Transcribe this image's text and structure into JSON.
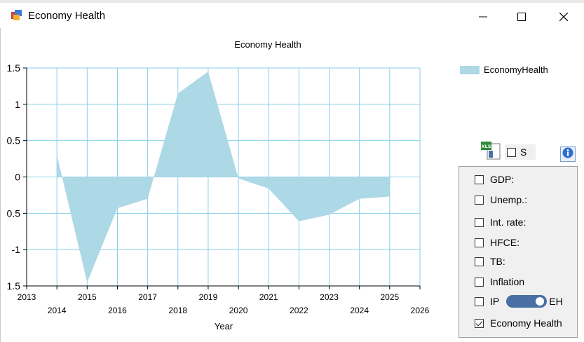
{
  "window": {
    "title": "Economy Health",
    "icon": "app-window-icon",
    "controls": [
      "minimize-icon",
      "maximize-icon",
      "close-icon"
    ]
  },
  "chart_data": {
    "type": "area",
    "title": "Economy Health",
    "xlabel": "Year",
    "ylabel": "",
    "xlim": [
      2013,
      2026
    ],
    "ylim": [
      -1.5,
      1.5
    ],
    "x_ticks_top_row": [
      "2013",
      "2015",
      "2017",
      "2019",
      "2021",
      "2023",
      "2025"
    ],
    "x_ticks_bottom_row": [
      "2014",
      "2016",
      "2018",
      "2020",
      "2022",
      "2024",
      "2026"
    ],
    "y_ticks": [
      "1.5",
      "1",
      "0.5",
      "0",
      "0.5",
      "-1",
      "1.5"
    ],
    "grid": true,
    "legend": "top-right",
    "series": [
      {
        "name": "EconomyHealth",
        "color": "#add8e6",
        "x": [
          2014,
          2015,
          2016,
          2017,
          2018,
          2019,
          2020,
          2021,
          2022,
          2023,
          2024,
          2025
        ],
        "values": [
          0.3,
          -1.45,
          -0.43,
          -0.3,
          1.15,
          1.45,
          -0.02,
          -0.16,
          -0.61,
          -0.52,
          -0.3,
          -0.27
        ]
      }
    ]
  },
  "tools": {
    "export_icon": "excel-export-icon",
    "s_label": "S",
    "s_checked": false,
    "info_icon": "info-icon"
  },
  "panel": {
    "items": [
      {
        "label": "GDP:",
        "checked": false
      },
      {
        "label": "Unemp.:",
        "checked": false
      },
      {
        "label": "Int. rate:",
        "checked": false
      },
      {
        "label": "HFCE:",
        "checked": false
      },
      {
        "label": "TB:",
        "checked": false
      },
      {
        "label": "Inflation",
        "checked": false
      }
    ],
    "ip_label": "IP",
    "ip_checked": false,
    "toggle_on": true,
    "eh_label": "EH",
    "economy_health_label": "Economy Health",
    "economy_health_checked": true
  }
}
